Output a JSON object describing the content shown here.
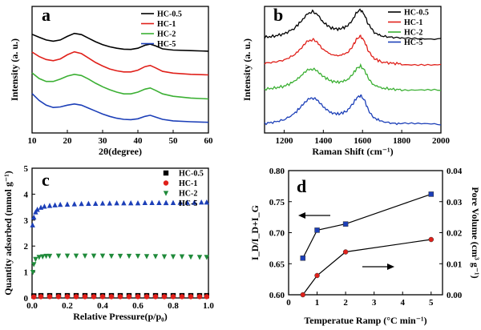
{
  "chart_data": [
    {
      "panel": "a",
      "type": "line",
      "xlabel": "2θ(degree)",
      "ylabel": "Intensity (a. u.)",
      "xlim": [
        10,
        60
      ],
      "xticks": [
        "10",
        "20",
        "30",
        "40",
        "50",
        "60"
      ],
      "legend_position": "top-right",
      "series": [
        {
          "name": "HC-0.5",
          "color": "#000000",
          "offset": 2.4,
          "x": [
            10,
            12,
            14,
            16,
            18,
            20,
            22,
            24,
            26,
            28,
            30,
            32,
            34,
            36,
            38,
            40,
            42,
            43.5,
            45,
            47,
            50,
            55,
            60
          ],
          "y": [
            0.55,
            0.45,
            0.36,
            0.32,
            0.36,
            0.48,
            0.58,
            0.54,
            0.42,
            0.3,
            0.2,
            0.13,
            0.08,
            0.05,
            0.04,
            0.08,
            0.18,
            0.22,
            0.16,
            0.06,
            0.02,
            0.0,
            -0.02
          ]
        },
        {
          "name": "HC-1",
          "color": "#e0201a",
          "offset": 1.6,
          "x": [
            10,
            12,
            14,
            16,
            18,
            20,
            22,
            24,
            26,
            28,
            30,
            32,
            34,
            36,
            38,
            40,
            42,
            43.5,
            45,
            47,
            50,
            55,
            60
          ],
          "y": [
            0.75,
            0.6,
            0.5,
            0.46,
            0.52,
            0.66,
            0.76,
            0.7,
            0.55,
            0.4,
            0.28,
            0.18,
            0.12,
            0.08,
            0.08,
            0.14,
            0.26,
            0.3,
            0.22,
            0.1,
            0.04,
            0.0,
            -0.02
          ]
        },
        {
          "name": "HC-2",
          "color": "#3cb034",
          "offset": 0.8,
          "x": [
            10,
            12,
            14,
            16,
            18,
            20,
            22,
            24,
            26,
            28,
            30,
            32,
            34,
            36,
            38,
            40,
            42,
            43.5,
            45,
            47,
            50,
            55,
            60
          ],
          "y": [
            0.85,
            0.66,
            0.56,
            0.56,
            0.64,
            0.74,
            0.8,
            0.76,
            0.64,
            0.5,
            0.38,
            0.28,
            0.2,
            0.14,
            0.14,
            0.2,
            0.3,
            0.34,
            0.26,
            0.14,
            0.06,
            0.0,
            -0.03
          ]
        },
        {
          "name": "HC-5",
          "color": "#1c3fb8",
          "offset": 0.0,
          "x": [
            10,
            12,
            14,
            16,
            18,
            20,
            22,
            24,
            26,
            28,
            30,
            32,
            34,
            36,
            38,
            40,
            42,
            43.5,
            45,
            47,
            50,
            55,
            60
          ],
          "y": [
            0.95,
            0.72,
            0.56,
            0.48,
            0.5,
            0.56,
            0.6,
            0.56,
            0.46,
            0.36,
            0.26,
            0.18,
            0.12,
            0.08,
            0.07,
            0.1,
            0.18,
            0.22,
            0.16,
            0.08,
            0.03,
            0.0,
            -0.02
          ]
        }
      ]
    },
    {
      "panel": "b",
      "type": "line",
      "xlabel": "Raman Shift (cm⁻¹)",
      "ylabel": "Intensity (a. u.)",
      "xlim": [
        1100,
        2000
      ],
      "xticks": [
        "1200",
        "1400",
        "1600",
        "1800",
        "2000"
      ],
      "legend_position": "top-left",
      "series": [
        {
          "name": "HC-0.5",
          "color": "#000000",
          "offset": 3.0,
          "x": [
            1100,
            1150,
            1200,
            1250,
            1290,
            1320,
            1345,
            1370,
            1400,
            1440,
            1480,
            1520,
            1550,
            1570,
            1590,
            1610,
            1630,
            1660,
            1700,
            1750,
            1800,
            1900,
            2000
          ],
          "y": [
            0.04,
            0.08,
            0.16,
            0.34,
            0.62,
            0.86,
            0.93,
            0.84,
            0.56,
            0.36,
            0.32,
            0.42,
            0.66,
            0.9,
            1.0,
            0.82,
            0.48,
            0.2,
            0.08,
            0.04,
            0.02,
            0.01,
            0.0
          ]
        },
        {
          "name": "HC-1",
          "color": "#e0201a",
          "offset": 2.1,
          "x": [
            1100,
            1150,
            1200,
            1250,
            1290,
            1320,
            1345,
            1370,
            1400,
            1440,
            1480,
            1520,
            1550,
            1570,
            1590,
            1610,
            1630,
            1660,
            1700,
            1750,
            1800,
            1900,
            2000
          ],
          "y": [
            0.04,
            0.08,
            0.15,
            0.32,
            0.58,
            0.8,
            0.86,
            0.78,
            0.52,
            0.34,
            0.3,
            0.4,
            0.64,
            0.88,
            0.98,
            0.8,
            0.46,
            0.2,
            0.08,
            0.04,
            0.02,
            0.01,
            0.0
          ]
        },
        {
          "name": "HC-2",
          "color": "#3cb034",
          "offset": 1.2,
          "x": [
            1100,
            1150,
            1200,
            1250,
            1290,
            1320,
            1345,
            1370,
            1400,
            1440,
            1480,
            1520,
            1550,
            1570,
            1590,
            1610,
            1630,
            1660,
            1700,
            1750,
            1800,
            1900,
            2000
          ],
          "y": [
            0.04,
            0.08,
            0.14,
            0.3,
            0.52,
            0.7,
            0.74,
            0.68,
            0.48,
            0.32,
            0.28,
            0.36,
            0.56,
            0.76,
            0.84,
            0.7,
            0.42,
            0.18,
            0.08,
            0.04,
            0.02,
            0.01,
            0.0
          ]
        },
        {
          "name": "HC-5",
          "color": "#1c3fb8",
          "offset": 0.0,
          "x": [
            1100,
            1150,
            1200,
            1250,
            1290,
            1320,
            1345,
            1370,
            1400,
            1440,
            1480,
            1520,
            1550,
            1570,
            1590,
            1610,
            1630,
            1660,
            1700,
            1750,
            1800,
            1900,
            2000
          ],
          "y": [
            0.05,
            0.1,
            0.18,
            0.38,
            0.66,
            0.88,
            0.94,
            0.86,
            0.62,
            0.42,
            0.38,
            0.48,
            0.72,
            0.94,
            1.02,
            0.86,
            0.52,
            0.24,
            0.12,
            0.06,
            0.04,
            0.02,
            0.0
          ]
        }
      ]
    },
    {
      "panel": "c",
      "type": "scatter",
      "xlabel": "Relative Pressure(p/p₀)",
      "ylabel": "Quantity adsorbed (mmol g⁻¹)",
      "xlim": [
        0,
        1.0
      ],
      "ylim": [
        0,
        5.0
      ],
      "xticks": [
        "0.0",
        "0.2",
        "0.4",
        "0.6",
        "0.8",
        "1.0"
      ],
      "yticks": [
        "0",
        "1",
        "2",
        "3",
        "4",
        "5"
      ],
      "legend_position": "top-right",
      "series": [
        {
          "name": "HC-0.5",
          "color": "#000000",
          "marker": "square",
          "x": [
            0.01,
            0.05,
            0.1,
            0.15,
            0.2,
            0.25,
            0.3,
            0.35,
            0.4,
            0.45,
            0.5,
            0.55,
            0.6,
            0.65,
            0.7,
            0.75,
            0.8,
            0.85,
            0.9,
            0.95,
            0.99
          ],
          "y": [
            0.08,
            0.09,
            0.09,
            0.09,
            0.09,
            0.09,
            0.09,
            0.09,
            0.09,
            0.09,
            0.09,
            0.09,
            0.09,
            0.09,
            0.09,
            0.09,
            0.09,
            0.09,
            0.09,
            0.09,
            0.09
          ]
        },
        {
          "name": "HC-1",
          "color": "#e0201a",
          "marker": "circle",
          "x": [
            0.01,
            0.05,
            0.1,
            0.15,
            0.2,
            0.25,
            0.3,
            0.35,
            0.4,
            0.45,
            0.5,
            0.55,
            0.6,
            0.65,
            0.7,
            0.75,
            0.8,
            0.85,
            0.9,
            0.95,
            0.99
          ],
          "y": [
            0.04,
            0.05,
            0.05,
            0.05,
            0.05,
            0.05,
            0.05,
            0.05,
            0.05,
            0.05,
            0.05,
            0.05,
            0.05,
            0.05,
            0.05,
            0.05,
            0.05,
            0.05,
            0.05,
            0.05,
            0.05
          ]
        },
        {
          "name": "HC-2",
          "color": "#1f8a3a",
          "marker": "triangle-down",
          "x": [
            0.005,
            0.01,
            0.02,
            0.04,
            0.06,
            0.08,
            0.1,
            0.15,
            0.2,
            0.25,
            0.3,
            0.35,
            0.4,
            0.45,
            0.5,
            0.55,
            0.6,
            0.65,
            0.7,
            0.75,
            0.8,
            0.85,
            0.9,
            0.95,
            0.99
          ],
          "y": [
            1.0,
            1.3,
            1.5,
            1.58,
            1.6,
            1.62,
            1.62,
            1.63,
            1.63,
            1.63,
            1.63,
            1.63,
            1.63,
            1.62,
            1.62,
            1.62,
            1.62,
            1.61,
            1.61,
            1.6,
            1.6,
            1.6,
            1.59,
            1.58,
            1.58
          ]
        },
        {
          "name": "HC-5",
          "color": "#1c3fb8",
          "marker": "triangle-up",
          "x": [
            0.003,
            0.01,
            0.02,
            0.03,
            0.05,
            0.07,
            0.1,
            0.13,
            0.16,
            0.2,
            0.24,
            0.28,
            0.32,
            0.36,
            0.4,
            0.44,
            0.48,
            0.52,
            0.56,
            0.6,
            0.64,
            0.68,
            0.72,
            0.76,
            0.8,
            0.84,
            0.88,
            0.92,
            0.96,
            0.99
          ],
          "y": [
            2.8,
            3.1,
            3.3,
            3.4,
            3.48,
            3.52,
            3.55,
            3.57,
            3.59,
            3.6,
            3.61,
            3.62,
            3.63,
            3.63,
            3.64,
            3.64,
            3.65,
            3.65,
            3.65,
            3.65,
            3.66,
            3.66,
            3.66,
            3.66,
            3.66,
            3.67,
            3.67,
            3.67,
            3.68,
            3.68
          ]
        }
      ]
    },
    {
      "panel": "d",
      "type": "line",
      "xlabel": "Temperatue Ramp (°C min⁻¹)",
      "ylabel": "I_D/I_D+I_G",
      "ylabel_right": "Pore Volume (cm³ g⁻¹)",
      "xlim": [
        0,
        5.4
      ],
      "ylim": [
        0.6,
        0.8
      ],
      "ylim_right": [
        0,
        0.04
      ],
      "xticks": [
        "0",
        "1",
        "2",
        "3",
        "4",
        "5"
      ],
      "yticks": [
        "0.60",
        "0.65",
        "0.70",
        "0.75",
        "0.80"
      ],
      "yticks_right": [
        "0.00",
        "0.01",
        "0.02",
        "0.03",
        "0.04"
      ],
      "series": [
        {
          "name": "I_D/I_D+I_G",
          "color": "#1c3fb8",
          "marker": "square",
          "axis": "left",
          "x": [
            0.5,
            1,
            2,
            5
          ],
          "y": [
            0.659,
            0.704,
            0.714,
            0.762
          ]
        },
        {
          "name": "Pore Volume",
          "color": "#e0201a",
          "marker": "circle",
          "axis": "right",
          "x": [
            0.5,
            1,
            2,
            5
          ],
          "y": [
            0.0,
            0.0062,
            0.0138,
            0.0178
          ]
        }
      ]
    }
  ]
}
